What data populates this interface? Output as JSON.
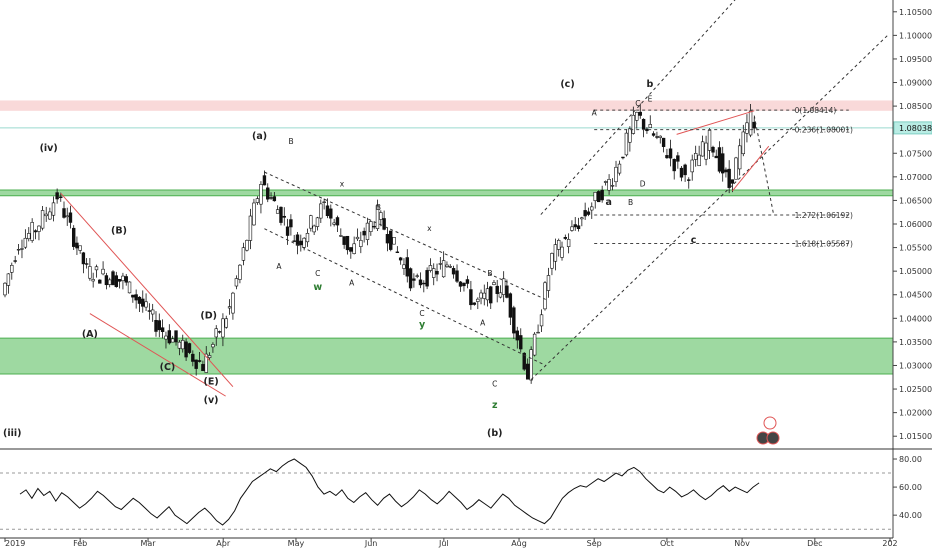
{
  "chart_data": {
    "type": "candlestick",
    "symbol": "",
    "price_axis": {
      "min": 1.0125,
      "max": 1.1075,
      "ticks": [
        "1.10500",
        "1.10000",
        "1.09500",
        "1.09000",
        "1.08500",
        "1.08000",
        "1.07500",
        "1.07000",
        "1.06500",
        "1.06000",
        "1.05500",
        "1.05000",
        "1.04500",
        "1.04000",
        "1.03500",
        "1.03000",
        "1.02500",
        "1.02000",
        "1.01500"
      ],
      "current_price_label": "1.08038",
      "current_price": 1.08038
    },
    "time_axis": {
      "labels": [
        "2019",
        "Feb",
        "Mar",
        "Apr",
        "May",
        "Jun",
        "Jul",
        "Aug",
        "Sep",
        "Oct",
        "Nov",
        "Dec",
        "202"
      ]
    },
    "zones": [
      {
        "name": "resistance",
        "from": 1.084,
        "to": 1.0862,
        "color": "#f8cfcf"
      },
      {
        "name": "middle",
        "from": 1.066,
        "to": 1.0672,
        "color": "#86cf8a"
      },
      {
        "name": "support",
        "from": 1.0282,
        "to": 1.0358,
        "color": "#86cf8a"
      }
    ],
    "levels": [
      {
        "label": "0(1.08414)",
        "value": 1.08414
      },
      {
        "label": "0.236(1.08001)",
        "value": 1.08001
      },
      {
        "label": "1.272(1.06192)",
        "value": 1.06192
      },
      {
        "label": "1.618(1.05587)",
        "value": 1.05587
      }
    ],
    "series_key_points": [
      {
        "t": "2019-01-01",
        "v": 1.045
      },
      {
        "t": "2019-01-08",
        "v": 1.056
      },
      {
        "t": "2019-01-15",
        "v": 1.059
      },
      {
        "t": "2019-01-24",
        "v": 1.066
      },
      {
        "t": "2019-02-05",
        "v": 1.05
      },
      {
        "t": "2019-02-20",
        "v": 1.048
      },
      {
        "t": "2019-03-07",
        "v": 1.038
      },
      {
        "t": "2019-03-25",
        "v": 1.03
      },
      {
        "t": "2019-04-05",
        "v": 1.042
      },
      {
        "t": "2019-04-18",
        "v": 1.069
      },
      {
        "t": "2019-05-03",
        "v": 1.056
      },
      {
        "t": "2019-05-14",
        "v": 1.064
      },
      {
        "t": "2019-05-25",
        "v": 1.054
      },
      {
        "t": "2019-06-05",
        "v": 1.062
      },
      {
        "t": "2019-06-20",
        "v": 1.047
      },
      {
        "t": "2019-07-05",
        "v": 1.052
      },
      {
        "t": "2019-07-15",
        "v": 1.043
      },
      {
        "t": "2019-07-27",
        "v": 1.047
      },
      {
        "t": "2019-08-06",
        "v": 1.028
      },
      {
        "t": "2019-08-16",
        "v": 1.053
      },
      {
        "t": "2019-08-31",
        "v": 1.063
      },
      {
        "t": "2019-09-10",
        "v": 1.07
      },
      {
        "t": "2019-09-20",
        "v": 1.083
      },
      {
        "t": "2019-10-01",
        "v": 1.076
      },
      {
        "t": "2019-10-10",
        "v": 1.07
      },
      {
        "t": "2019-10-20",
        "v": 1.078
      },
      {
        "t": "2019-10-28",
        "v": 1.068
      },
      {
        "t": "2019-11-06",
        "v": 1.083
      },
      {
        "t": "2019-11-08",
        "v": 1.08
      }
    ],
    "wave_labels": [
      {
        "text": "(iii)",
        "t": "2019-01-04",
        "v": 1.015
      },
      {
        "text": "(iv)",
        "t": "2019-01-19",
        "v": 1.0755
      },
      {
        "text": "(B)",
        "t": "2019-02-17",
        "v": 1.058
      },
      {
        "text": "(A)",
        "t": "2019-02-05",
        "v": 1.036
      },
      {
        "text": "(D)",
        "t": "2019-03-26",
        "v": 1.04
      },
      {
        "text": "(C)",
        "t": "2019-03-09",
        "v": 1.029
      },
      {
        "text": "(E)",
        "t": "2019-03-27",
        "v": 1.026
      },
      {
        "text": "(v)",
        "t": "2019-03-27",
        "v": 1.022
      },
      {
        "text": "(a)",
        "t": "2019-04-16",
        "v": 1.078
      },
      {
        "text": "B",
        "t": "2019-04-29",
        "v": 1.077
      },
      {
        "text": "A",
        "t": "2019-04-24",
        "v": 1.0505
      },
      {
        "text": "C",
        "t": "2019-05-10",
        "v": 1.049
      },
      {
        "text": "w",
        "t": "2019-05-10",
        "v": 1.046
      },
      {
        "text": "x",
        "t": "2019-05-20",
        "v": 1.068
      },
      {
        "text": "B",
        "t": "2019-06-04",
        "v": 1.063
      },
      {
        "text": "A",
        "t": "2019-05-24",
        "v": 1.047
      },
      {
        "text": "x",
        "t": "2019-06-25",
        "v": 1.0585
      },
      {
        "text": "C",
        "t": "2019-06-22",
        "v": 1.0405
      },
      {
        "text": "y",
        "t": "2019-06-22",
        "v": 1.038
      },
      {
        "text": "A",
        "t": "2019-07-17",
        "v": 1.0385
      },
      {
        "text": "B",
        "t": "2019-07-20",
        "v": 1.049
      },
      {
        "text": "C",
        "t": "2019-07-22",
        "v": 1.0255
      },
      {
        "text": "z",
        "t": "2019-07-22",
        "v": 1.021
      },
      {
        "text": "(b)",
        "t": "2019-07-22",
        "v": 1.015
      },
      {
        "text": "(c)",
        "t": "2019-08-21",
        "v": 1.089
      },
      {
        "text": "A",
        "t": "2019-09-01",
        "v": 1.083
      },
      {
        "text": "C",
        "t": "2019-09-19",
        "v": 1.085
      },
      {
        "text": "E",
        "t": "2019-09-24",
        "v": 1.086
      },
      {
        "text": "b",
        "t": "2019-09-24",
        "v": 1.089
      },
      {
        "text": "a",
        "t": "2019-09-07",
        "v": 1.064
      },
      {
        "text": "B",
        "t": "2019-09-16",
        "v": 1.064
      },
      {
        "text": "D",
        "t": "2019-09-21",
        "v": 1.068
      },
      {
        "text": "c",
        "t": "2019-10-12",
        "v": 1.056
      }
    ],
    "oscillator": {
      "ticks": [
        "80.00",
        "60.00",
        "40.00"
      ],
      "range": [
        28,
        85
      ],
      "reference_lines": [
        70,
        30
      ],
      "values": [
        55,
        58,
        52,
        59,
        54,
        57,
        50,
        56,
        53,
        49,
        45,
        48,
        52,
        57,
        54,
        50,
        46,
        44,
        48,
        52,
        49,
        45,
        41,
        38,
        42,
        46,
        40,
        37,
        34,
        38,
        42,
        45,
        41,
        36,
        33,
        37,
        43,
        52,
        58,
        64,
        67,
        70,
        73,
        71,
        75,
        78,
        80,
        77,
        74,
        68,
        60,
        55,
        57,
        54,
        58,
        52,
        49,
        53,
        56,
        51,
        47,
        52,
        55,
        50,
        46,
        49,
        53,
        58,
        55,
        51,
        48,
        52,
        57,
        53,
        49,
        44,
        47,
        51,
        48,
        45,
        50,
        55,
        52,
        47,
        44,
        41,
        38,
        36,
        34,
        38,
        45,
        52,
        56,
        59,
        61,
        60,
        63,
        66,
        64,
        67,
        70,
        68,
        72,
        74,
        71,
        66,
        62,
        58,
        56,
        60,
        57,
        53,
        55,
        58,
        54,
        51,
        54,
        58,
        61,
        57,
        60,
        58,
        56,
        60,
        63
      ],
      "line_color": "#111111"
    }
  }
}
